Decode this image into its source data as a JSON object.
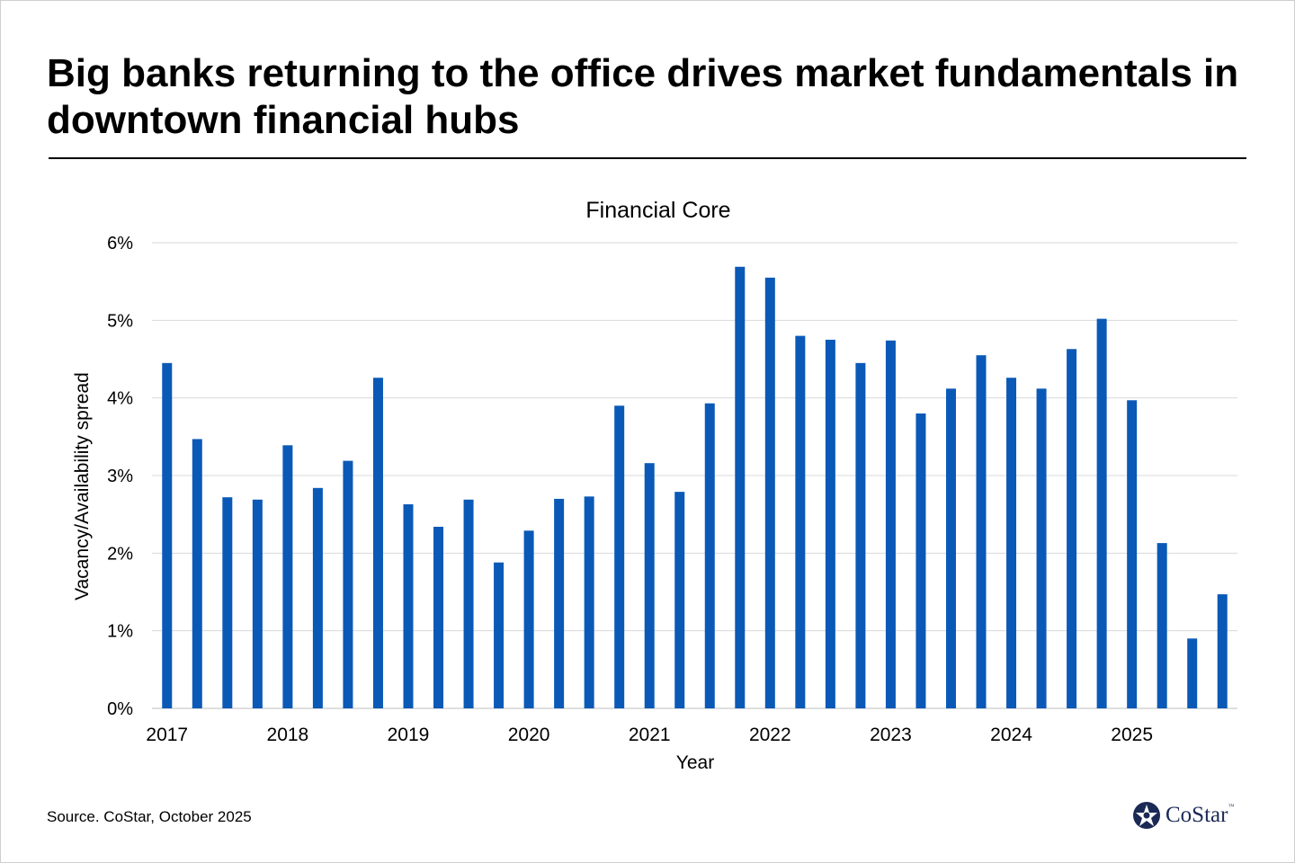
{
  "headline": "Big banks returning to the office drives market fundamentals in downtown financial hubs",
  "source": "Source. CoStar, October 2025",
  "logo": {
    "name": "CoStar",
    "tm": "™",
    "icon": "costar-star-icon"
  },
  "colors": {
    "bar": "#0b59b7",
    "grid": "#d9d9d9",
    "text": "#000000"
  },
  "chart_data": {
    "type": "bar",
    "title": "Financial Core",
    "xlabel": "Year",
    "ylabel": "Vacancy/Availability spread",
    "ylim": [
      0,
      6
    ],
    "yticks": [
      "0%",
      "1%",
      "2%",
      "3%",
      "4%",
      "5%",
      "6%"
    ],
    "grid": true,
    "x_tick_labels": [
      "2017",
      "2018",
      "2019",
      "2020",
      "2021",
      "2022",
      "2023",
      "2024",
      "2025"
    ],
    "categories": [
      "2017 Q1",
      "2017 Q2",
      "2017 Q3",
      "2017 Q4",
      "2018 Q1",
      "2018 Q2",
      "2018 Q3",
      "2018 Q4",
      "2019 Q1",
      "2019 Q2",
      "2019 Q3",
      "2019 Q4",
      "2020 Q1",
      "2020 Q2",
      "2020 Q3",
      "2020 Q4",
      "2021 Q1",
      "2021 Q2",
      "2021 Q3",
      "2021 Q4",
      "2022 Q1",
      "2022 Q2",
      "2022 Q3",
      "2022 Q4",
      "2023 Q1",
      "2023 Q2",
      "2023 Q3",
      "2023 Q4",
      "2024 Q1",
      "2024 Q2",
      "2024 Q3",
      "2024 Q4",
      "2025 Q1",
      "2025 Q2",
      "2025 Q3",
      "2025 Q4"
    ],
    "values": [
      4.45,
      3.47,
      2.72,
      2.69,
      3.39,
      2.84,
      3.19,
      4.26,
      2.63,
      2.34,
      2.69,
      1.88,
      2.29,
      2.7,
      2.73,
      3.9,
      3.16,
      2.79,
      3.93,
      5.69,
      5.55,
      4.8,
      4.75,
      4.45,
      4.74,
      3.8,
      4.12,
      4.55,
      4.26,
      4.12,
      4.63,
      5.02,
      3.97,
      2.13,
      0.9,
      1.47
    ]
  }
}
